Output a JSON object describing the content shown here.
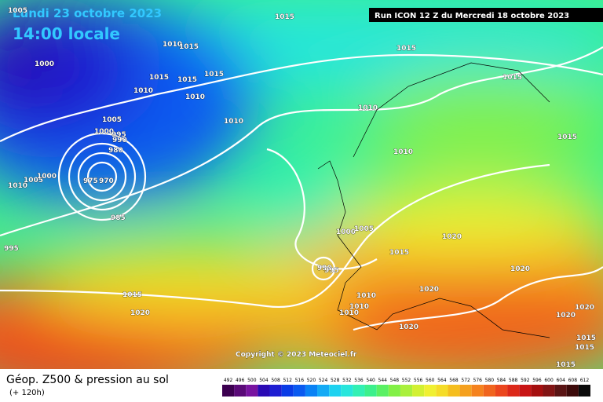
{
  "header": {
    "date": "Lundi 23 octobre 2023",
    "time": "14:00 locale",
    "run": "Run ICON 12 Z du Mercredi 18 octobre 2023"
  },
  "copyright": "Copyright © 2023 Meteociel.fr",
  "footer": {
    "title": "Géop. Z500 & pression au sol",
    "lead": "(+ 120h)"
  },
  "isobar_labels": [
    "1005",
    "1015",
    "1015",
    "1010",
    "1015",
    "1000",
    "1015",
    "1010",
    "1015",
    "1010",
    "1015",
    "1010",
    "1005",
    "1000",
    "995",
    "990",
    "980",
    "975",
    "970",
    "985",
    "1005",
    "1000",
    "1010",
    "995",
    "1015",
    "1020",
    "1010",
    "1010",
    "1015",
    "1015",
    "1000",
    "1005",
    "1015",
    "1020",
    "1020",
    "1020",
    "990",
    "995",
    "1010",
    "1010",
    "1010",
    "1020",
    "1020",
    "1020",
    "1015",
    "1015",
    "1015"
  ],
  "colorbar": {
    "ticks": [
      492,
      496,
      500,
      504,
      508,
      512,
      516,
      520,
      524,
      528,
      532,
      536,
      540,
      544,
      548,
      552,
      556,
      560,
      564,
      568,
      572,
      576,
      580,
      584,
      588,
      592,
      596,
      600,
      604,
      608,
      612
    ],
    "colors": [
      "#3c0050",
      "#5a0a78",
      "#7814a0",
      "#2a0ab4",
      "#1e1ed2",
      "#0a3ce6",
      "#0a5af0",
      "#0a82f5",
      "#14aaf5",
      "#1ed2f0",
      "#28e6dc",
      "#32f0b4",
      "#3cf08c",
      "#5af064",
      "#82f046",
      "#aaf03c",
      "#d2f032",
      "#f0f032",
      "#f5dc28",
      "#f5be1e",
      "#f5a01e",
      "#f5821e",
      "#f0641e",
      "#eb461e",
      "#dc2819",
      "#c81414",
      "#a50f0f",
      "#821414",
      "#5a1414",
      "#3c0a0a",
      "#0a0a0a"
    ]
  }
}
